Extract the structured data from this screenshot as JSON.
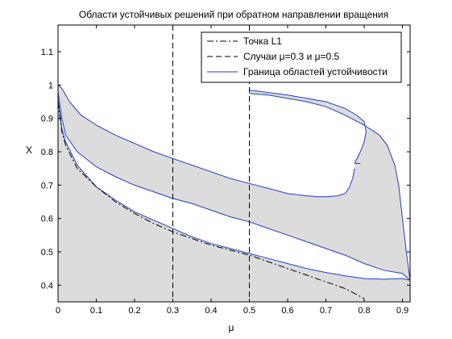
{
  "chart_data": {
    "type": "area",
    "title": "Области устойчивых решений при обратном направлении вращения",
    "xlabel": "μ",
    "ylabel": "X",
    "xlim": [
      0,
      0.92
    ],
    "ylim": [
      0.35,
      1.18
    ],
    "xticks": [
      "0",
      "0.1",
      "0.2",
      "0.3",
      "0.4",
      "0.5",
      "0.6",
      "0.7",
      "0.8",
      "0.9"
    ],
    "yticks": [
      "0.4",
      "0.5",
      "0.6",
      "0.7",
      "0.8",
      "0.9",
      "1",
      "1.1"
    ],
    "grid": false,
    "legend_position": "top-right",
    "colors": {
      "fill": "#dcdcdc",
      "boundary": "#1f3fbf",
      "line": "#000000"
    },
    "legend": [
      {
        "label": "Точка L1",
        "style": "dash-dot"
      },
      {
        "label": "Случаи μ=0.3 и μ=0.5",
        "style": "dashed"
      },
      {
        "label": "Граница областей устойчивости",
        "style": "solid"
      }
    ],
    "series": [
      {
        "name": "Точка L1",
        "style": "dash-dot",
        "points": [
          [
            0.0,
            0.95
          ],
          [
            0.01,
            0.86
          ],
          [
            0.02,
            0.82
          ],
          [
            0.05,
            0.75
          ],
          [
            0.1,
            0.695
          ],
          [
            0.15,
            0.65
          ],
          [
            0.2,
            0.615
          ],
          [
            0.25,
            0.585
          ],
          [
            0.3,
            0.56
          ],
          [
            0.35,
            0.54
          ],
          [
            0.4,
            0.52
          ],
          [
            0.45,
            0.505
          ],
          [
            0.5,
            0.49
          ],
          [
            0.55,
            0.47
          ],
          [
            0.6,
            0.45
          ],
          [
            0.65,
            0.43
          ],
          [
            0.7,
            0.41
          ],
          [
            0.75,
            0.39
          ],
          [
            0.8,
            0.36
          ]
        ]
      },
      {
        "name": "Случаи μ=0.3 и μ=0.5",
        "style": "dashed",
        "x_values": [
          0.3,
          0.5
        ]
      },
      {
        "name": "Граница областей устойчивости",
        "style": "solid",
        "curves": [
          [
            [
              0.0,
              1.0
            ],
            [
              0.01,
              0.99
            ],
            [
              0.03,
              0.95
            ],
            [
              0.06,
              0.91
            ],
            [
              0.1,
              0.88
            ],
            [
              0.15,
              0.85
            ],
            [
              0.2,
              0.825
            ],
            [
              0.25,
              0.8
            ],
            [
              0.3,
              0.78
            ],
            [
              0.35,
              0.76
            ],
            [
              0.4,
              0.74
            ],
            [
              0.45,
              0.72
            ],
            [
              0.5,
              0.705
            ],
            [
              0.55,
              0.69
            ],
            [
              0.6,
              0.675
            ],
            [
              0.65,
              0.668
            ],
            [
              0.68,
              0.665
            ],
            [
              0.7,
              0.665
            ],
            [
              0.73,
              0.668
            ],
            [
              0.75,
              0.675
            ],
            [
              0.76,
              0.69
            ],
            [
              0.77,
              0.72
            ],
            [
              0.775,
              0.75
            ]
          ],
          [
            [
              0.0,
              0.98
            ],
            [
              0.01,
              0.9
            ],
            [
              0.02,
              0.85
            ],
            [
              0.05,
              0.8
            ],
            [
              0.1,
              0.755
            ],
            [
              0.15,
              0.725
            ],
            [
              0.2,
              0.7
            ],
            [
              0.25,
              0.68
            ],
            [
              0.3,
              0.66
            ],
            [
              0.35,
              0.645
            ],
            [
              0.4,
              0.625
            ],
            [
              0.45,
              0.605
            ],
            [
              0.5,
              0.59
            ],
            [
              0.55,
              0.57
            ],
            [
              0.6,
              0.55
            ],
            [
              0.65,
              0.53
            ],
            [
              0.7,
              0.51
            ],
            [
              0.75,
              0.49
            ],
            [
              0.8,
              0.465
            ],
            [
              0.85,
              0.445
            ],
            [
              0.9,
              0.435
            ],
            [
              0.92,
              0.415
            ]
          ],
          [
            [
              0.0,
              0.96
            ],
            [
              0.01,
              0.87
            ],
            [
              0.02,
              0.83
            ],
            [
              0.05,
              0.76
            ],
            [
              0.1,
              0.695
            ],
            [
              0.15,
              0.655
            ],
            [
              0.2,
              0.62
            ],
            [
              0.25,
              0.595
            ],
            [
              0.3,
              0.57
            ],
            [
              0.35,
              0.545
            ],
            [
              0.4,
              0.525
            ],
            [
              0.45,
              0.51
            ],
            [
              0.5,
              0.495
            ],
            [
              0.55,
              0.48
            ],
            [
              0.6,
              0.465
            ],
            [
              0.65,
              0.45
            ],
            [
              0.7,
              0.438
            ],
            [
              0.75,
              0.428
            ],
            [
              0.8,
              0.42
            ],
            [
              0.85,
              0.418
            ],
            [
              0.9,
              0.42
            ],
            [
              0.92,
              0.415
            ]
          ],
          [
            [
              0.5,
              0.975
            ],
            [
              0.55,
              0.97
            ],
            [
              0.6,
              0.96
            ],
            [
              0.65,
              0.95
            ],
            [
              0.7,
              0.935
            ],
            [
              0.75,
              0.91
            ],
            [
              0.8,
              0.88
            ],
            [
              0.84,
              0.85
            ],
            [
              0.86,
              0.82
            ],
            [
              0.88,
              0.76
            ],
            [
              0.89,
              0.7
            ],
            [
              0.9,
              0.6
            ],
            [
              0.91,
              0.5
            ],
            [
              0.92,
              0.415
            ]
          ],
          [
            [
              0.5,
              0.985
            ],
            [
              0.6,
              0.97
            ],
            [
              0.7,
              0.95
            ],
            [
              0.75,
              0.93
            ],
            [
              0.78,
              0.91
            ],
            [
              0.8,
              0.89
            ],
            [
              0.805,
              0.86
            ],
            [
              0.8,
              0.83
            ],
            [
              0.79,
              0.8
            ],
            [
              0.775,
              0.765
            ]
          ],
          [
            [
              0.775,
              0.765
            ],
            [
              0.78,
              0.765
            ],
            [
              0.79,
              0.765
            ]
          ]
        ]
      }
    ]
  }
}
